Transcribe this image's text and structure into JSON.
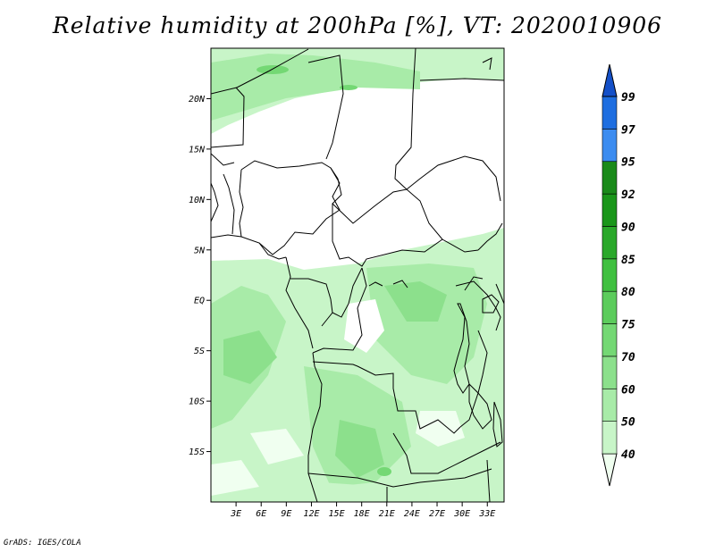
{
  "title": "Relative humidity at 200hPa [%], VT: 2020010906",
  "footer": "GrADS: IGES/COLA",
  "map": {
    "lon_range": [
      0,
      35
    ],
    "lat_range": [
      -20,
      25
    ],
    "lat_ticks": [
      {
        "value": 20,
        "label": "20N"
      },
      {
        "value": 15,
        "label": "15N"
      },
      {
        "value": 10,
        "label": "10N"
      },
      {
        "value": 5,
        "label": "5N"
      },
      {
        "value": 0,
        "label": "EQ"
      },
      {
        "value": -5,
        "label": "5S"
      },
      {
        "value": -10,
        "label": "10S"
      },
      {
        "value": -15,
        "label": "15S"
      }
    ],
    "lon_ticks": [
      {
        "value": 3,
        "label": "3E"
      },
      {
        "value": 6,
        "label": "6E"
      },
      {
        "value": 9,
        "label": "9E"
      },
      {
        "value": 12,
        "label": "12E"
      },
      {
        "value": 15,
        "label": "15E"
      },
      {
        "value": 18,
        "label": "18E"
      },
      {
        "value": 21,
        "label": "21E"
      },
      {
        "value": 24,
        "label": "24E"
      },
      {
        "value": 27,
        "label": "27E"
      },
      {
        "value": 30,
        "label": "30E"
      },
      {
        "value": 33,
        "label": "33E"
      }
    ]
  },
  "colorbar": {
    "levels": [
      "40",
      "50",
      "60",
      "70",
      "75",
      "80",
      "85",
      "90",
      "92",
      "95",
      "97",
      "99"
    ],
    "colors": [
      "#f0fff0",
      "#c8f5c8",
      "#a8eba8",
      "#8ce08c",
      "#74d874",
      "#5ccc5c",
      "#40c040",
      "#2aa82a",
      "#1a961a",
      "#1a8a1a",
      "#3c8cf0",
      "#1e6ee0",
      "#1450c8"
    ]
  }
}
